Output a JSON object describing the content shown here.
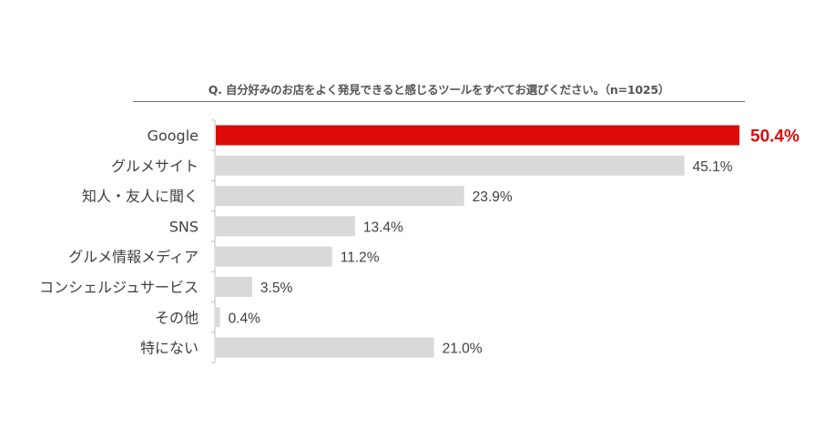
{
  "chart_data": {
    "type": "bar",
    "orientation": "horizontal",
    "title": "Q. 自分好みのお店をよく発見できると感じるツールをすべてお選びください。（n=1025）",
    "categories": [
      "Google",
      "グルメサイト",
      "知人・友人に聞く",
      "SNS",
      "グルメ情報メディア",
      "コンシェルジュサービス",
      "その他",
      "特にない"
    ],
    "values": [
      50.4,
      45.1,
      23.9,
      13.4,
      11.2,
      3.5,
      0.4,
      21.0
    ],
    "value_labels": [
      "50.4%",
      "45.1%",
      "23.9%",
      "13.4%",
      "11.2%",
      "3.5%",
      "0.4%",
      "21.0%"
    ],
    "highlight_index": 0,
    "xlim": [
      0,
      50.4
    ],
    "grid": false,
    "xlabel": "",
    "ylabel": ""
  },
  "colors": {
    "highlight": "#dd0a0a",
    "bar": "#d9d9d9",
    "text": "#404040",
    "axis": "#bfbfbf"
  }
}
